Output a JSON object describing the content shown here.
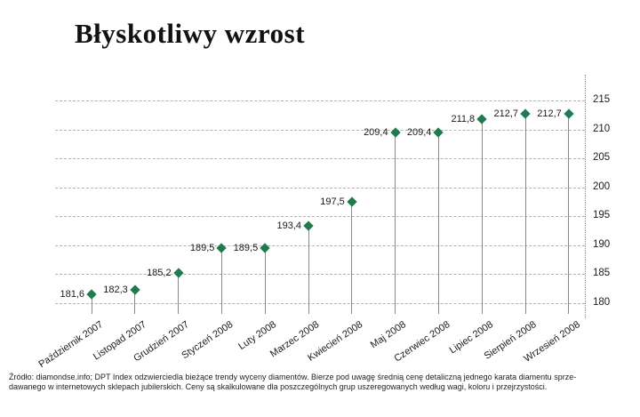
{
  "title": "Błyskotliwy wzrost",
  "source_note": {
    "line1": "Źródło: diamondse.info; DPT Index odzwierciedla bieżące trendy wyceny diamentów. Bierze pod uwagę średnią cenę detaliczną jednego karata diamentu sprze-",
    "line2": "dawanego w internetowych sklepach jubilerskich. Ceny są skalkulowane dla poszczególnych grup uszeregowanych według wagi, koloru i przejrzystości."
  },
  "chart_data": {
    "type": "scatter",
    "title": "Błyskotliwy wzrost",
    "categories": [
      "Październik 2007",
      "Listopad 2007",
      "Grudzień 2007",
      "Styczeń 2008",
      "Luty 2008",
      "Marzec 2008",
      "Kwiecień 2008",
      "Maj 2008",
      "Czerwiec 2008",
      "Lipiec 2008",
      "Sierpień 2008",
      "Wrzesień 2008"
    ],
    "values": [
      181.6,
      182.3,
      185.2,
      189.5,
      189.5,
      193.4,
      197.5,
      209.4,
      209.4,
      211.8,
      212.7,
      212.7
    ],
    "value_labels": [
      "181,6",
      "182,3",
      "185,2",
      "189,5",
      "189,5",
      "193,4",
      "197,5",
      "209,4",
      "209,4",
      "211,8",
      "212,7",
      "212,7"
    ],
    "yticks": [
      180,
      185,
      190,
      195,
      200,
      205,
      210,
      215
    ],
    "ylim": [
      178,
      216
    ],
    "xlabel": "",
    "ylabel": "",
    "grid": true,
    "y_axis_position": "right",
    "legend": "none",
    "marker": "diamond",
    "marker_color": "#1e7b4e",
    "stem_lines": true
  }
}
